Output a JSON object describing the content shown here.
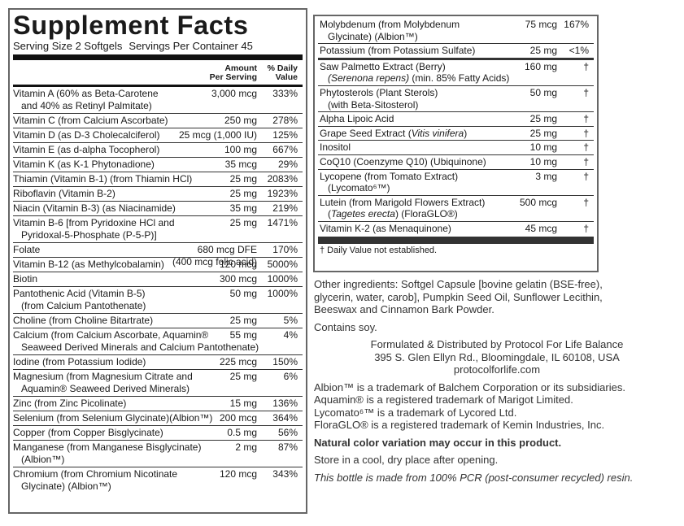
{
  "left_panel": {
    "title": "Supplement Facts",
    "serving_size": "Serving Size 2 Softgels",
    "servings_per_container": "Servings Per Container 45",
    "header": {
      "amount": [
        "Amount",
        "Per Serving"
      ],
      "daily_value": [
        "% Daily",
        "Value"
      ]
    },
    "rows": [
      {
        "name": [
          "Vitamin A (60% as Beta-Carotene",
          "and 40% as Retinyl Palmitate)"
        ],
        "amount": "3,000 mcg",
        "daily_value": "333%"
      },
      {
        "name": [
          "Vitamin C (from Calcium Ascorbate)"
        ],
        "amount": "250 mg",
        "daily_value": "278%"
      },
      {
        "name": [
          "Vitamin D (as D-3 Cholecalciferol)"
        ],
        "amount": "25 mcg (1,000 IU)",
        "daily_value": "125%"
      },
      {
        "name": [
          "Vitamin E (as d-alpha Tocopherol)"
        ],
        "amount": "100 mg",
        "daily_value": "667%"
      },
      {
        "name": [
          "Vitamin K (as K-1 Phytonadione)"
        ],
        "amount": "35 mcg",
        "daily_value": "29%"
      },
      {
        "name": [
          "Thiamin (Vitamin B-1) (from Thiamin HCl)"
        ],
        "amount": "25 mg",
        "daily_value": "2083%"
      },
      {
        "name": [
          "Riboflavin (Vitamin B-2)"
        ],
        "amount": "25 mg",
        "daily_value": "1923%"
      },
      {
        "name": [
          "Niacin (Vitamin B-3) (as Niacinamide)"
        ],
        "amount": "35 mg",
        "daily_value": "219%"
      },
      {
        "name": [
          "Vitamin B-6 [from Pyridoxine HCl and",
          "Pyridoxal-5-Phosphate (P-5-P)]"
        ],
        "amount": "25 mg",
        "daily_value": "1471%"
      },
      {
        "name": [
          "Folate"
        ],
        "amount": [
          "680 mcg DFE",
          "(400 mcg folic acid)"
        ],
        "daily_value": "170%"
      },
      {
        "name": [
          "Vitamin B-12 (as Methylcobalamin)"
        ],
        "amount": "120 mcg",
        "daily_value": "5000%"
      },
      {
        "name": [
          "Biotin"
        ],
        "amount": "300 mcg",
        "daily_value": "1000%"
      },
      {
        "name": [
          "Pantothenic Acid (Vitamin B-5)",
          "(from Calcium Pantothenate)"
        ],
        "amount": "50 mg",
        "daily_value": "1000%"
      },
      {
        "name": [
          "Choline (from Choline Bitartrate)"
        ],
        "amount": "25 mg",
        "daily_value": "5%"
      },
      {
        "name": [
          "Calcium (from Calcium Ascorbate, Aquamin®",
          "Seaweed Derived Minerals and Calcium Pantothenate)"
        ],
        "amount": "55 mg",
        "daily_value": "4%"
      },
      {
        "name": [
          "Iodine (from Potassium Iodide)"
        ],
        "amount": "225 mcg",
        "daily_value": "150%"
      },
      {
        "name": [
          "Magnesium (from Magnesium Citrate and",
          "Aquamin® Seaweed Derived Minerals)"
        ],
        "amount": "25 mg",
        "daily_value": "6%"
      },
      {
        "name": [
          "Zinc (from Zinc Picolinate)"
        ],
        "amount": "15 mg",
        "daily_value": "136%"
      },
      {
        "name": [
          "Selenium (from Selenium Glycinate)(Albion™)"
        ],
        "amount": "200 mcg",
        "daily_value": "364%"
      },
      {
        "name": [
          "Copper (from Copper Bisglycinate)"
        ],
        "amount": "0.5 mg",
        "daily_value": "56%"
      },
      {
        "name": [
          "Manganese (from Manganese Bisglycinate)",
          "(Albion™)"
        ],
        "amount": "2 mg",
        "daily_value": "87%"
      },
      {
        "name": [
          "Chromium (from Chromium Nicotinate",
          "Glycinate) (Albion™)"
        ],
        "amount": "120 mcg",
        "daily_value": "343%"
      }
    ]
  },
  "right_panel": {
    "rows": [
      {
        "name": [
          "Molybdenum (from Molybdenum",
          "Glycinate) (Albion™)"
        ],
        "amount": "75 mcg",
        "daily_value": "167%"
      },
      {
        "name": [
          "Potassium (from Potassium Sulfate)"
        ],
        "amount": "25 mg",
        "daily_value": "<1%"
      },
      {
        "name": [
          "Saw Palmetto Extract (Berry)",
          [
            {
              "text": "(Serenona repens)",
              "italic": true
            },
            " (min. 85% Fatty Acids)"
          ]
        ],
        "amount": "160 mg",
        "daily_value": "†"
      },
      {
        "name": [
          "Phytosterols (Plant Sterols)",
          "(with Beta-Sitosterol)"
        ],
        "amount": "50 mg",
        "daily_value": "†"
      },
      {
        "name": [
          "Alpha Lipoic Acid"
        ],
        "amount": "25 mg",
        "daily_value": "†"
      },
      {
        "name": [
          [
            "Grape Seed Extract (",
            {
              "text": "Vitis vinifera",
              "italic": true
            },
            ")"
          ]
        ],
        "amount": "25 mg",
        "daily_value": "†"
      },
      {
        "name": [
          "Inositol"
        ],
        "amount": "10 mg",
        "daily_value": "†"
      },
      {
        "name": [
          "CoQ10 (Coenzyme Q10) (Ubiquinone)"
        ],
        "amount": "10 mg",
        "daily_value": "†"
      },
      {
        "name": [
          "Lycopene (from Tomato Extract)",
          "(Lycomato⁶™)"
        ],
        "amount": "3 mg",
        "daily_value": "†"
      },
      {
        "name": [
          "Lutein (from Marigold Flowers Extract)",
          [
            "(",
            {
              "text": "Tagetes erecta",
              "italic": true
            },
            ") (FloraGLO®)"
          ]
        ],
        "amount": "500 mcg",
        "daily_value": "†"
      },
      {
        "name": [
          "Vitamin K-2 (as Menaquinone)"
        ],
        "amount": "45 mcg",
        "daily_value": "†"
      }
    ],
    "footnote": "† Daily Value not established."
  },
  "notes": {
    "other_ingredients": [
      "Other ingredients: Softgel Capsule [bovine gelatin (BSE-free),",
      "glycerin, water, carob], Pumpkin Seed Oil, Sunflower Lecithin,",
      "Beeswax and Cinnamon Bark Powder."
    ],
    "contains": "Contains soy.",
    "distributor": [
      "Formulated & Distributed by Protocol For Life Balance",
      "395 S. Glen Ellyn Rd., Bloomingdale, IL 60108, USA",
      "protocolforlife.com"
    ],
    "trademarks": [
      "Albion™ is a trademark of Balchem Corporation or its subsidiaries.",
      "Aquamin® is a registered trademark of Marigot Limited.",
      "Lycomato⁶™ is a trademark of Lycored Ltd.",
      "FloraGLO® is a registered trademark of Kemin Industries, Inc."
    ],
    "color_note": "Natural color variation may occur in this product.",
    "storage": "Store in a cool, dry place after opening.",
    "bottle": "This bottle is made from 100% PCR (post-consumer recycled) resin."
  }
}
